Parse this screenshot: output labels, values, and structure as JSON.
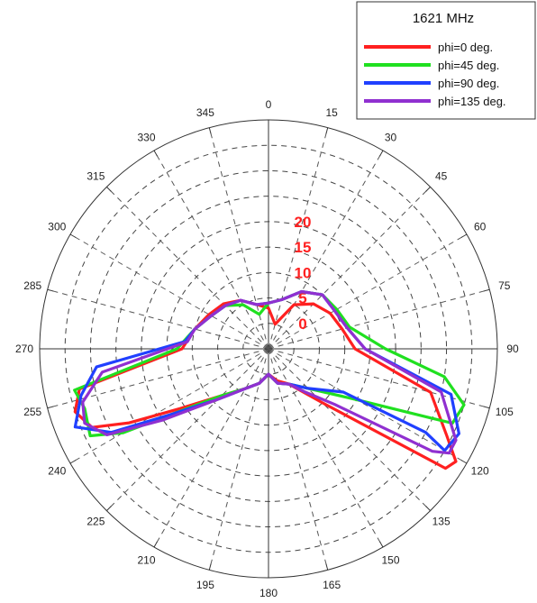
{
  "chart_data": {
    "type": "polar-line",
    "title": "1621 MHz",
    "angle_ticks": [
      0,
      15,
      30,
      45,
      60,
      75,
      90,
      105,
      120,
      135,
      150,
      165,
      180,
      195,
      210,
      225,
      240,
      255,
      270,
      285,
      300,
      315,
      330,
      345
    ],
    "angle_labels": [
      "0",
      "15",
      "30",
      "45",
      "60",
      "75",
      "90",
      "105",
      "120",
      "135",
      "150",
      "165",
      "180",
      "195",
      "210",
      "225",
      "240",
      "255",
      "270",
      "285",
      "300",
      "315",
      "330",
      "345"
    ],
    "radial_ticks": [
      "20",
      "15",
      "10",
      "5",
      "0"
    ],
    "radial_range": [
      -5,
      40
    ],
    "grid": true,
    "legend_placement": "top-right",
    "series": [
      {
        "name": "phi=0 deg.",
        "color": "#ff2020",
        "points": [
          [
            0,
            3
          ],
          [
            15,
            0
          ],
          [
            30,
            5
          ],
          [
            45,
            7.5
          ],
          [
            60,
            9
          ],
          [
            75,
            10
          ],
          [
            90,
            12
          ],
          [
            105,
            28
          ],
          [
            116,
            34
          ],
          [
            121,
            38
          ],
          [
            124,
            37
          ],
          [
            135,
            10
          ],
          [
            150,
            3
          ],
          [
            165,
            1.5
          ],
          [
            180,
            0
          ],
          [
            195,
            2
          ],
          [
            210,
            4
          ],
          [
            225,
            8
          ],
          [
            236,
            16
          ],
          [
            242,
            26
          ],
          [
            246,
            33
          ],
          [
            252,
            35
          ],
          [
            258,
            33
          ],
          [
            270,
            12
          ],
          [
            285,
            10
          ],
          [
            300,
            8.5
          ],
          [
            315,
            7.5
          ],
          [
            330,
            6
          ],
          [
            345,
            4
          ]
        ]
      },
      {
        "name": "phi=45 deg.",
        "color": "#20e020",
        "points": [
          [
            0,
            4
          ],
          [
            15,
            5
          ],
          [
            30,
            8
          ],
          [
            45,
            10
          ],
          [
            60,
            10.5
          ],
          [
            75,
            11.5
          ],
          [
            90,
            18
          ],
          [
            99,
            30
          ],
          [
            106,
            35
          ],
          [
            112,
            34
          ],
          [
            113,
            30
          ],
          [
            120,
            15
          ],
          [
            135,
            6
          ],
          [
            150,
            3
          ],
          [
            165,
            2
          ],
          [
            180,
            0
          ],
          [
            195,
            2
          ],
          [
            210,
            4
          ],
          [
            225,
            8
          ],
          [
            236,
            18
          ],
          [
            240,
            28
          ],
          [
            244,
            34
          ],
          [
            252,
            33
          ],
          [
            258,
            34
          ],
          [
            270,
            13
          ],
          [
            285,
            10
          ],
          [
            300,
            8
          ],
          [
            315,
            7
          ],
          [
            330,
            5
          ],
          [
            345,
            2
          ]
        ]
      },
      {
        "name": "phi=90 deg.",
        "color": "#2040ff",
        "points": [
          [
            0,
            4
          ],
          [
            15,
            5
          ],
          [
            30,
            8
          ],
          [
            45,
            10
          ],
          [
            60,
            10
          ],
          [
            75,
            11
          ],
          [
            90,
            14
          ],
          [
            104,
            32
          ],
          [
            114,
            36
          ],
          [
            120,
            35
          ],
          [
            118,
            30
          ],
          [
            120,
            12
          ],
          [
            135,
            6
          ],
          [
            150,
            3
          ],
          [
            165,
            2
          ],
          [
            180,
            0
          ],
          [
            195,
            2
          ],
          [
            210,
            4
          ],
          [
            225,
            9
          ],
          [
            236,
            18
          ],
          [
            242,
            30
          ],
          [
            248,
            36
          ],
          [
            256,
            33
          ],
          [
            264,
            29
          ],
          [
            275,
            11.5
          ],
          [
            285,
            10
          ],
          [
            300,
            8
          ],
          [
            315,
            7
          ],
          [
            330,
            6
          ],
          [
            345,
            4
          ]
        ]
      },
      {
        "name": "phi=135 deg.",
        "color": "#9030d0",
        "points": [
          [
            0,
            4
          ],
          [
            15,
            5
          ],
          [
            30,
            8
          ],
          [
            45,
            10
          ],
          [
            60,
            10
          ],
          [
            75,
            11
          ],
          [
            90,
            14
          ],
          [
            104,
            30
          ],
          [
            116,
            36
          ],
          [
            120,
            36
          ],
          [
            122,
            33
          ],
          [
            130,
            12
          ],
          [
            140,
            6
          ],
          [
            150,
            3
          ],
          [
            165,
            2
          ],
          [
            180,
            0
          ],
          [
            195,
            2
          ],
          [
            210,
            4
          ],
          [
            225,
            9
          ],
          [
            236,
            20
          ],
          [
            242,
            31
          ],
          [
            248,
            34
          ],
          [
            254,
            33
          ],
          [
            262,
            28
          ],
          [
            275,
            11
          ],
          [
            285,
            10
          ],
          [
            300,
            8
          ],
          [
            315,
            7
          ],
          [
            330,
            6
          ],
          [
            345,
            4
          ]
        ]
      }
    ]
  }
}
